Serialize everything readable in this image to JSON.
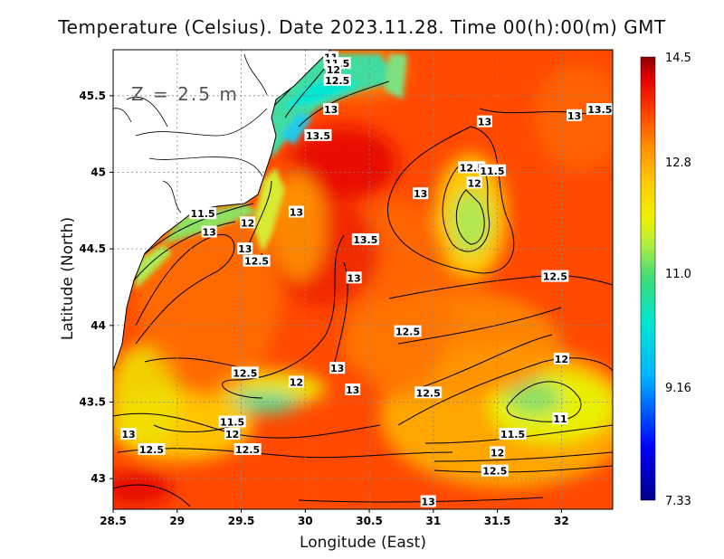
{
  "title": "Temperature (Celsius). Date 2023.11.28. Time 00(h):00(m) GMT",
  "depth_label": "Z = 2.5 m",
  "colors": {
    "land": "#ffffff",
    "ramp": [
      "#00008b",
      "#0000ff",
      "#00b4ff",
      "#00e6d2",
      "#3cdc7a",
      "#b4ee3c",
      "#f0f000",
      "#ffc800",
      "#ff8c00",
      "#ff3c00",
      "#e60000",
      "#8b0000"
    ]
  },
  "chart_data": {
    "type": "heatmap",
    "variable": "Temperature (Celsius)",
    "xlabel": "Longitude (East)",
    "ylabel": "Latitude (North)",
    "xlim": [
      28.5,
      32.4
    ],
    "ylim": [
      42.8,
      45.8
    ],
    "xticks": [
      "28.5",
      "29",
      "29.5",
      "30",
      "30.5",
      "31",
      "31.5",
      "32"
    ],
    "yticks": [
      "43",
      "43.5",
      "44",
      "44.5",
      "45",
      "45.5"
    ],
    "grid": true,
    "colorbar": {
      "ticks": [
        "14.5",
        "12.8",
        "11.0",
        "9.16",
        "7.33"
      ],
      "min": 7.33,
      "max": 14.5
    },
    "contour_labels": [
      {
        "text": "11",
        "lon": 30.2,
        "lat": 45.75
      },
      {
        "text": "11.5",
        "lon": 30.25,
        "lat": 45.71
      },
      {
        "text": "12",
        "lon": 30.22,
        "lat": 45.67
      },
      {
        "text": "12.5",
        "lon": 30.25,
        "lat": 45.6
      },
      {
        "text": "13",
        "lon": 30.2,
        "lat": 45.41
      },
      {
        "text": "13.5",
        "lon": 30.1,
        "lat": 45.24
      },
      {
        "text": "13",
        "lon": 31.4,
        "lat": 45.33
      },
      {
        "text": "13",
        "lon": 32.1,
        "lat": 45.37
      },
      {
        "text": "13.5",
        "lon": 32.3,
        "lat": 45.41
      },
      {
        "text": "12.5",
        "lon": 31.3,
        "lat": 45.03
      },
      {
        "text": "11.5",
        "lon": 31.46,
        "lat": 45.01
      },
      {
        "text": "12",
        "lon": 31.32,
        "lat": 44.93
      },
      {
        "text": "13",
        "lon": 30.9,
        "lat": 44.86
      },
      {
        "text": "11.5",
        "lon": 29.2,
        "lat": 44.73
      },
      {
        "text": "12",
        "lon": 29.55,
        "lat": 44.67
      },
      {
        "text": "13",
        "lon": 29.93,
        "lat": 44.74
      },
      {
        "text": "13",
        "lon": 29.25,
        "lat": 44.61
      },
      {
        "text": "13.5",
        "lon": 30.47,
        "lat": 44.56
      },
      {
        "text": "13",
        "lon": 29.53,
        "lat": 44.5
      },
      {
        "text": "12.5",
        "lon": 29.62,
        "lat": 44.42
      },
      {
        "text": "13",
        "lon": 30.38,
        "lat": 44.31
      },
      {
        "text": "12.5",
        "lon": 31.95,
        "lat": 44.32
      },
      {
        "text": "12.5",
        "lon": 30.8,
        "lat": 43.96
      },
      {
        "text": "12",
        "lon": 32.0,
        "lat": 43.78
      },
      {
        "text": "13",
        "lon": 30.25,
        "lat": 43.72
      },
      {
        "text": "12.5",
        "lon": 29.53,
        "lat": 43.69
      },
      {
        "text": "12",
        "lon": 29.93,
        "lat": 43.63
      },
      {
        "text": "13",
        "lon": 30.37,
        "lat": 43.58
      },
      {
        "text": "12.5",
        "lon": 30.96,
        "lat": 43.56
      },
      {
        "text": "11",
        "lon": 31.99,
        "lat": 43.39
      },
      {
        "text": "11.5",
        "lon": 29.43,
        "lat": 43.37
      },
      {
        "text": "13",
        "lon": 28.62,
        "lat": 43.29
      },
      {
        "text": "12",
        "lon": 29.43,
        "lat": 43.29
      },
      {
        "text": "11.5",
        "lon": 31.62,
        "lat": 43.29
      },
      {
        "text": "12.5",
        "lon": 28.8,
        "lat": 43.19
      },
      {
        "text": "12.5",
        "lon": 29.55,
        "lat": 43.19
      },
      {
        "text": "12",
        "lon": 31.5,
        "lat": 43.17
      },
      {
        "text": "12.5",
        "lon": 31.48,
        "lat": 43.05
      },
      {
        "text": "13",
        "lon": 30.96,
        "lat": 42.85
      }
    ]
  }
}
